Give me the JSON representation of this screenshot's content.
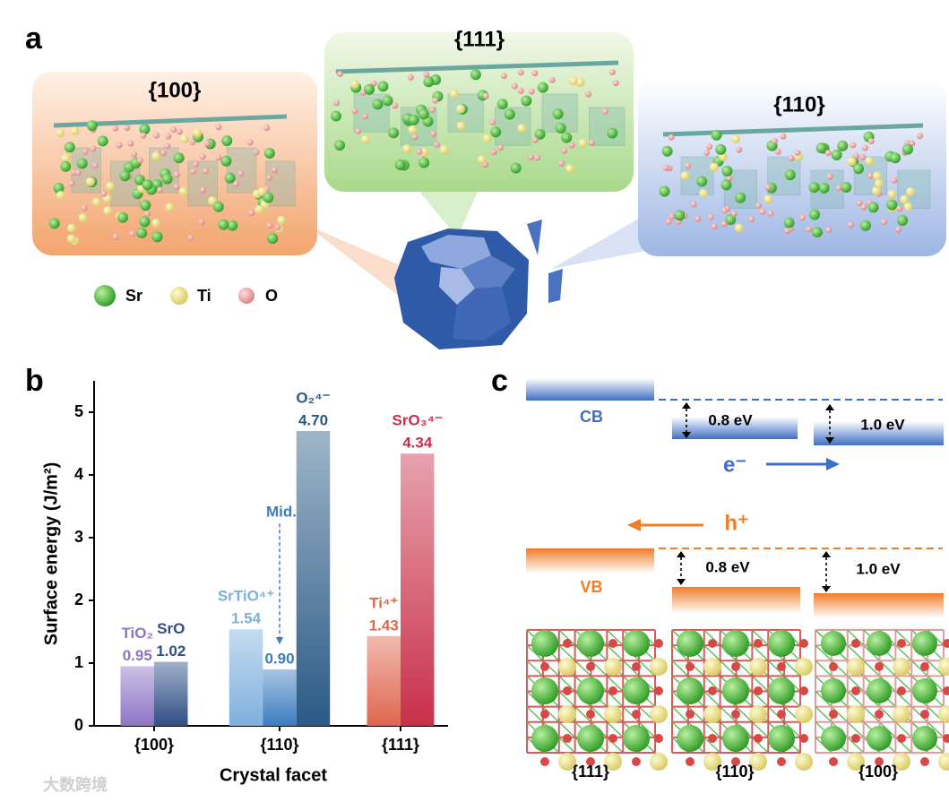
{
  "panel_labels": [
    "a",
    "b",
    "c"
  ],
  "panel_a": {
    "facets": [
      "{100}",
      "{111}",
      "{110}"
    ],
    "legend": [
      "Sr",
      "Ti",
      "O"
    ]
  },
  "chart_data": {
    "type": "bar",
    "y_label": "Surface energy (J/m²)",
    "x_label": "Crystal facet",
    "categories": [
      "{100}",
      "{110}",
      "{111}"
    ],
    "groups": [
      {
        "bars": [
          {
            "name": "TiO₂",
            "value": 0.95,
            "color": "#8d74c6"
          },
          {
            "name": "SrO",
            "value": 1.02,
            "color": "#2f4f86"
          }
        ]
      },
      {
        "bars": [
          {
            "name": "SrTiO⁴⁺",
            "value": 1.54,
            "color": "#7fb0dd"
          },
          {
            "name": "Mid.",
            "value": 0.9,
            "value_label": "0.90",
            "color": "#3d7cc0"
          },
          {
            "name": "O₂⁴⁻",
            "value": 4.7,
            "value_label": "4.70",
            "color": "#2a5a86"
          }
        ]
      },
      {
        "bars": [
          {
            "name": "Ti⁴⁺",
            "value": 1.43,
            "color": "#e0664e"
          },
          {
            "name": "SrO₃⁴⁻",
            "value": 4.34,
            "color": "#c8304a"
          }
        ]
      }
    ],
    "ylim": [
      0,
      5.5
    ],
    "yticks": [
      0,
      1,
      2,
      3,
      4,
      5
    ]
  },
  "panel_c": {
    "cb": "CB",
    "vb": "VB",
    "electron": "e⁻",
    "hole": "h⁺",
    "cb_offsets": [
      "0.8 eV",
      "1.0 eV"
    ],
    "vb_offsets": [
      "0.8 eV",
      "1.0 eV"
    ],
    "facets": [
      "{111}",
      "{110}",
      "{100}"
    ]
  },
  "watermark": "大数跨境"
}
